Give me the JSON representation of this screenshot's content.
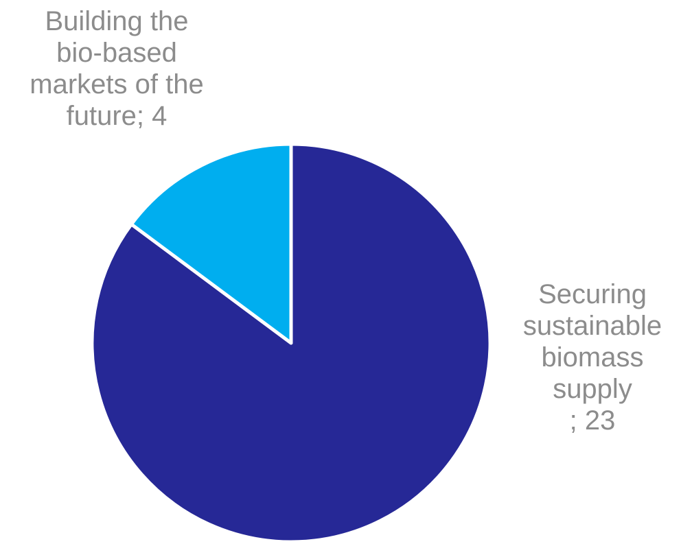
{
  "chart_data": {
    "type": "pie",
    "title": "",
    "slices": [
      {
        "label": "Securing sustainable biomass supply",
        "label_lines": "Securing\nsustainable\nbiomass\nsupply\n; 23",
        "value": 23,
        "color": "#262896"
      },
      {
        "label": "Building the bio-based markets of the future",
        "label_lines": "Building the\nbio-based\nmarkets of the\nfuture; 4",
        "value": 4,
        "color": "#00aeef"
      }
    ],
    "start_angle_deg": 0,
    "direction": "clockwise",
    "slice_border_color": "#ffffff",
    "label_color": "#8c8c8c",
    "legend": "none"
  }
}
